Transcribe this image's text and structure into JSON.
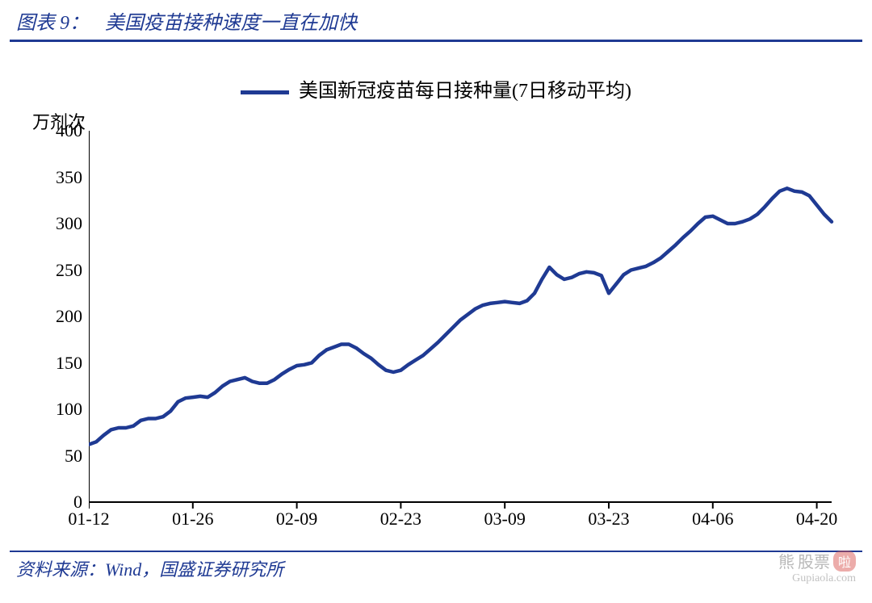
{
  "header": {
    "label": "图表 9：",
    "title": "美国疫苗接种速度一直在加快"
  },
  "footer": {
    "source": "资料来源：Wind，国盛证券研究所"
  },
  "watermark": {
    "text1": "熊",
    "text2": "股票",
    "badge": "啦",
    "sub": "Gupiaola.com"
  },
  "chart": {
    "type": "line",
    "legend_label": "美国新冠疫苗每日接种量(7日移动平均)",
    "yaxis_title": "万剂次",
    "line_color": "#1f3a93",
    "line_width": 4.5,
    "background_color": "#ffffff",
    "ylim": [
      0,
      400
    ],
    "ytick_step": 50,
    "yticks": [
      0,
      50,
      100,
      150,
      200,
      250,
      300,
      350,
      400
    ],
    "x_domain_index": [
      0,
      100
    ],
    "xticks": [
      {
        "pos": 0,
        "label": "01-12"
      },
      {
        "pos": 14,
        "label": "01-26"
      },
      {
        "pos": 28,
        "label": "02-09"
      },
      {
        "pos": 42,
        "label": "02-23"
      },
      {
        "pos": 56,
        "label": "03-09"
      },
      {
        "pos": 70,
        "label": "03-23"
      },
      {
        "pos": 84,
        "label": "04-06"
      },
      {
        "pos": 98,
        "label": "04-20"
      }
    ],
    "series": [
      {
        "name": "daily_vaccinations_7dma",
        "color": "#1f3a93",
        "values": [
          62,
          65,
          72,
          78,
          80,
          80,
          82,
          88,
          90,
          90,
          92,
          98,
          108,
          112,
          113,
          114,
          113,
          118,
          125,
          130,
          132,
          134,
          130,
          128,
          128,
          132,
          138,
          143,
          147,
          148,
          150,
          158,
          164,
          167,
          170,
          170,
          166,
          160,
          155,
          148,
          142,
          140,
          142,
          148,
          153,
          158,
          165,
          172,
          180,
          188,
          196,
          202,
          208,
          212,
          214,
          215,
          216,
          215,
          214,
          217,
          225,
          240,
          253,
          245,
          240,
          242,
          246,
          248,
          247,
          244,
          225,
          235,
          245,
          250,
          252,
          254,
          258,
          263,
          270,
          277,
          285,
          292,
          300,
          307,
          308,
          304,
          300,
          300,
          302,
          305,
          310,
          318,
          327,
          335,
          338,
          335,
          334,
          330,
          320,
          310,
          302
        ]
      }
    ]
  }
}
